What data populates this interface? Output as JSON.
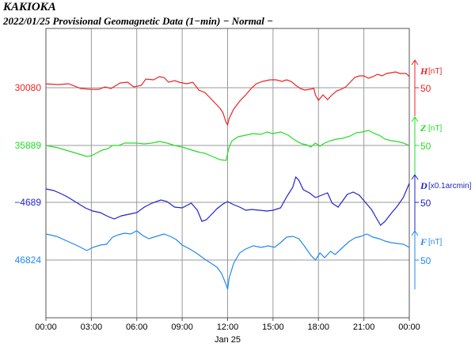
{
  "title": {
    "station": "KAKIOKA",
    "subtitle": "2022/01/25  Provisional Geomagnetic Data (1−min)  − Normal −"
  },
  "chart_data": {
    "type": "line",
    "xlabel": "Jan 25",
    "x_ticks": [
      "00:00",
      "03:00",
      "06:00",
      "09:00",
      "12:00",
      "15:00",
      "18:00",
      "21:00",
      "00:00"
    ],
    "x_range_hours": [
      0,
      24
    ],
    "grid": true,
    "series": [
      {
        "name": "H",
        "unit": "[nT]",
        "scale_label": "50",
        "baseline_label": "30080",
        "color": "#ee2222",
        "points": [
          [
            0,
            106
          ],
          [
            0.8,
            107
          ],
          [
            1.5,
            106
          ],
          [
            2.3,
            112
          ],
          [
            3.0,
            113
          ],
          [
            3.5,
            113
          ],
          [
            3.9,
            110
          ],
          [
            4.3,
            112
          ],
          [
            4.9,
            105
          ],
          [
            5.4,
            104
          ],
          [
            5.8,
            110
          ],
          [
            6.3,
            108
          ],
          [
            6.6,
            100
          ],
          [
            7.1,
            101
          ],
          [
            7.5,
            97
          ],
          [
            7.8,
            98
          ],
          [
            8.1,
            104
          ],
          [
            8.5,
            102
          ],
          [
            8.8,
            104
          ],
          [
            9.3,
            106
          ],
          [
            9.7,
            104
          ],
          [
            10.1,
            114
          ],
          [
            10.5,
            117
          ],
          [
            10.9,
            125
          ],
          [
            11.2,
            131
          ],
          [
            11.5,
            137
          ],
          [
            11.7,
            143
          ],
          [
            11.9,
            155
          ],
          [
            12.0,
            158
          ],
          [
            12.1,
            150
          ],
          [
            12.4,
            138
          ],
          [
            12.8,
            128
          ],
          [
            13.2,
            120
          ],
          [
            13.6,
            111
          ],
          [
            13.9,
            106
          ],
          [
            14.3,
            103
          ],
          [
            14.8,
            101
          ],
          [
            15.2,
            101
          ],
          [
            15.6,
            103
          ],
          [
            15.9,
            101
          ],
          [
            16.2,
            103
          ],
          [
            16.5,
            108
          ],
          [
            16.8,
            112
          ],
          [
            17.1,
            114
          ],
          [
            17.4,
            113
          ],
          [
            17.7,
            112
          ],
          [
            17.8,
            120
          ],
          [
            18.0,
            127
          ],
          [
            18.3,
            120
          ],
          [
            18.6,
            126
          ],
          [
            18.9,
            120
          ],
          [
            19.2,
            115
          ],
          [
            19.5,
            113
          ],
          [
            19.8,
            110
          ],
          [
            20.1,
            104
          ],
          [
            20.4,
            98
          ],
          [
            20.7,
            96
          ],
          [
            21.0,
            96
          ],
          [
            21.3,
            99
          ],
          [
            21.6,
            97
          ],
          [
            21.9,
            94
          ],
          [
            22.2,
            96
          ],
          [
            22.5,
            93
          ],
          [
            22.8,
            92
          ],
          [
            23.1,
            91
          ],
          [
            23.4,
            93
          ],
          [
            23.8,
            93
          ],
          [
            24,
            97
          ]
        ]
      },
      {
        "name": "Z",
        "unit": "[nT]",
        "scale_label": "50",
        "baseline_label": "35889",
        "color": "#22dd22",
        "points": [
          [
            0,
            184
          ],
          [
            0.8,
            187
          ],
          [
            1.5,
            191
          ],
          [
            2.2,
            195
          ],
          [
            2.7,
            198
          ],
          [
            3.0,
            197
          ],
          [
            3.3,
            194
          ],
          [
            3.7,
            190
          ],
          [
            4.1,
            188
          ],
          [
            4.4,
            184
          ],
          [
            4.8,
            184
          ],
          [
            5.2,
            181
          ],
          [
            5.6,
            181
          ],
          [
            6.0,
            181
          ],
          [
            6.5,
            182
          ],
          [
            7.0,
            181
          ],
          [
            7.5,
            179
          ],
          [
            8.0,
            181
          ],
          [
            8.5,
            184
          ],
          [
            9.0,
            186
          ],
          [
            9.5,
            189
          ],
          [
            10.0,
            192
          ],
          [
            10.5,
            194
          ],
          [
            11.0,
            198
          ],
          [
            11.5,
            202
          ],
          [
            11.9,
            203
          ],
          [
            12.1,
            186
          ],
          [
            12.3,
            178
          ],
          [
            12.7,
            173
          ],
          [
            13.2,
            171
          ],
          [
            13.7,
            169
          ],
          [
            14.2,
            170
          ],
          [
            14.6,
            167
          ],
          [
            15.0,
            169
          ],
          [
            15.5,
            167
          ],
          [
            16.0,
            171
          ],
          [
            16.5,
            178
          ],
          [
            16.9,
            182
          ],
          [
            17.2,
            183
          ],
          [
            17.5,
            186
          ],
          [
            17.8,
            181
          ],
          [
            18.1,
            185
          ],
          [
            18.4,
            181
          ],
          [
            18.8,
            178
          ],
          [
            19.2,
            176
          ],
          [
            19.6,
            175
          ],
          [
            20.1,
            172
          ],
          [
            20.5,
            168
          ],
          [
            20.9,
            167
          ],
          [
            21.3,
            165
          ],
          [
            21.7,
            169
          ],
          [
            22.0,
            171
          ],
          [
            22.4,
            176
          ],
          [
            22.8,
            178
          ],
          [
            23.2,
            179
          ],
          [
            23.6,
            181
          ],
          [
            24,
            184
          ]
        ]
      },
      {
        "name": "D",
        "unit": "[x0.1arcmin]",
        "scale_label": "50",
        "baseline_label": "−4689",
        "color": "#2222cc",
        "points": [
          [
            0,
            239
          ],
          [
            0.5,
            241
          ],
          [
            1.0,
            245
          ],
          [
            1.5,
            250
          ],
          [
            2.0,
            256
          ],
          [
            2.6,
            263
          ],
          [
            3.1,
            267
          ],
          [
            3.6,
            269
          ],
          [
            4.0,
            273
          ],
          [
            4.5,
            277
          ],
          [
            5.0,
            273
          ],
          [
            5.5,
            271
          ],
          [
            6.0,
            269
          ],
          [
            6.5,
            262
          ],
          [
            7.0,
            257
          ],
          [
            7.6,
            253
          ],
          [
            8.0,
            255
          ],
          [
            8.5,
            262
          ],
          [
            9.0,
            263
          ],
          [
            9.6,
            257
          ],
          [
            10.0,
            266
          ],
          [
            10.3,
            280
          ],
          [
            10.6,
            278
          ],
          [
            11.0,
            270
          ],
          [
            11.3,
            264
          ],
          [
            11.7,
            258
          ],
          [
            12.0,
            255
          ],
          [
            12.4,
            259
          ],
          [
            12.8,
            262
          ],
          [
            13.2,
            266
          ],
          [
            13.6,
            265
          ],
          [
            14.1,
            266
          ],
          [
            14.6,
            267
          ],
          [
            15.0,
            266
          ],
          [
            15.5,
            263
          ],
          [
            15.9,
            249
          ],
          [
            16.3,
            237
          ],
          [
            16.5,
            224
          ],
          [
            16.7,
            228
          ],
          [
            17.0,
            240
          ],
          [
            17.4,
            244
          ],
          [
            17.8,
            250
          ],
          [
            18.2,
            247
          ],
          [
            18.6,
            244
          ],
          [
            18.9,
            257
          ],
          [
            19.3,
            262
          ],
          [
            19.6,
            254
          ],
          [
            19.9,
            246
          ],
          [
            20.3,
            243
          ],
          [
            20.7,
            247
          ],
          [
            21.1,
            256
          ],
          [
            21.5,
            265
          ],
          [
            21.8,
            275
          ],
          [
            22.1,
            285
          ],
          [
            22.4,
            280
          ],
          [
            22.8,
            270
          ],
          [
            23.2,
            261
          ],
          [
            23.6,
            250
          ],
          [
            24,
            232
          ]
        ]
      },
      {
        "name": "F",
        "unit": "[nT]",
        "scale_label": "50",
        "baseline_label": "46824",
        "color": "#2288ee",
        "points": [
          [
            0,
            296
          ],
          [
            0.7,
            299
          ],
          [
            1.4,
            305
          ],
          [
            2.1,
            311
          ],
          [
            2.7,
            317
          ],
          [
            3.1,
            313
          ],
          [
            3.6,
            310
          ],
          [
            4.0,
            309
          ],
          [
            4.4,
            300
          ],
          [
            4.8,
            297
          ],
          [
            5.2,
            295
          ],
          [
            5.6,
            296
          ],
          [
            6.0,
            292
          ],
          [
            6.4,
            298
          ],
          [
            6.8,
            302
          ],
          [
            7.3,
            299
          ],
          [
            7.8,
            296
          ],
          [
            8.2,
            299
          ],
          [
            8.6,
            303
          ],
          [
            9.0,
            310
          ],
          [
            9.5,
            315
          ],
          [
            10.0,
            321
          ],
          [
            10.5,
            328
          ],
          [
            10.9,
            333
          ],
          [
            11.3,
            338
          ],
          [
            11.6,
            346
          ],
          [
            11.9,
            360
          ],
          [
            12.0,
            366
          ],
          [
            12.1,
            352
          ],
          [
            12.4,
            333
          ],
          [
            12.8,
            320
          ],
          [
            13.2,
            315
          ],
          [
            13.7,
            311
          ],
          [
            14.2,
            313
          ],
          [
            14.7,
            311
          ],
          [
            15.1,
            313
          ],
          [
            15.5,
            307
          ],
          [
            15.9,
            300
          ],
          [
            16.3,
            299
          ],
          [
            16.7,
            302
          ],
          [
            17.1,
            312
          ],
          [
            17.5,
            323
          ],
          [
            17.8,
            329
          ],
          [
            18.1,
            320
          ],
          [
            18.4,
            326
          ],
          [
            18.8,
            318
          ],
          [
            19.1,
            322
          ],
          [
            19.6,
            313
          ],
          [
            20.0,
            306
          ],
          [
            20.4,
            301
          ],
          [
            20.8,
            299
          ],
          [
            21.2,
            296
          ],
          [
            21.6,
            300
          ],
          [
            22.0,
            302
          ],
          [
            22.4,
            305
          ],
          [
            22.8,
            307
          ],
          [
            23.2,
            308
          ],
          [
            23.6,
            309
          ],
          [
            24,
            313
          ]
        ]
      }
    ]
  }
}
